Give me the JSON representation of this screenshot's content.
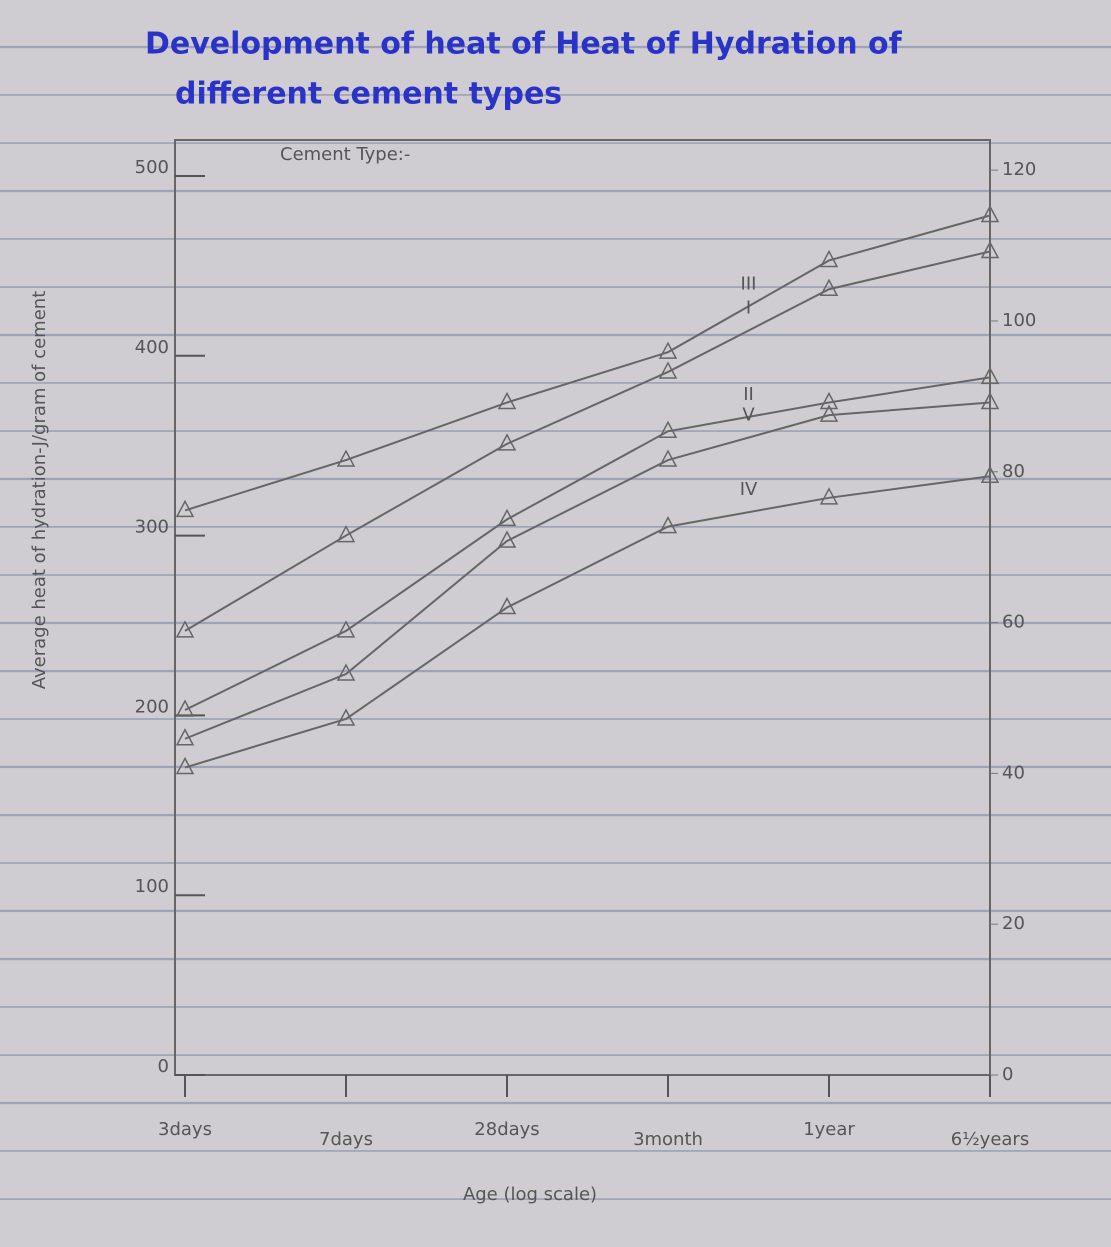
{
  "chart_data": {
    "type": "line",
    "title": "Development of heat of Heat of Hydration of",
    "subtitle": "different cement types",
    "legend_title": "Cement Type:-",
    "x_label": "Age (log scale)",
    "y_label": "Average heat of hydration-J/gram of cement",
    "categories": [
      "3days",
      "7days",
      "28days",
      "3month",
      "1year",
      "6½years"
    ],
    "ylim": [
      0,
      520
    ],
    "yticks": [
      0,
      100,
      200,
      300,
      400,
      500
    ],
    "y2lim": [
      0,
      124
    ],
    "y2ticks": [
      0,
      20,
      40,
      60,
      80,
      100,
      120
    ],
    "series": [
      {
        "name": "III",
        "color": "#666",
        "values": [
          314,
          342,
          374,
          402,
          453,
          478
        ]
      },
      {
        "name": "I",
        "color": "#666",
        "values": [
          247,
          300,
          351,
          391,
          437,
          458
        ]
      },
      {
        "name": "II",
        "color": "#666",
        "values": [
          203,
          247,
          309,
          358,
          374,
          388
        ]
      },
      {
        "name": "V",
        "color": "#666",
        "values": [
          187,
          223,
          297,
          342,
          367,
          374
        ]
      },
      {
        "name": "IV",
        "color": "#666",
        "values": [
          171,
          198,
          260,
          305,
          321,
          333
        ]
      }
    ]
  }
}
